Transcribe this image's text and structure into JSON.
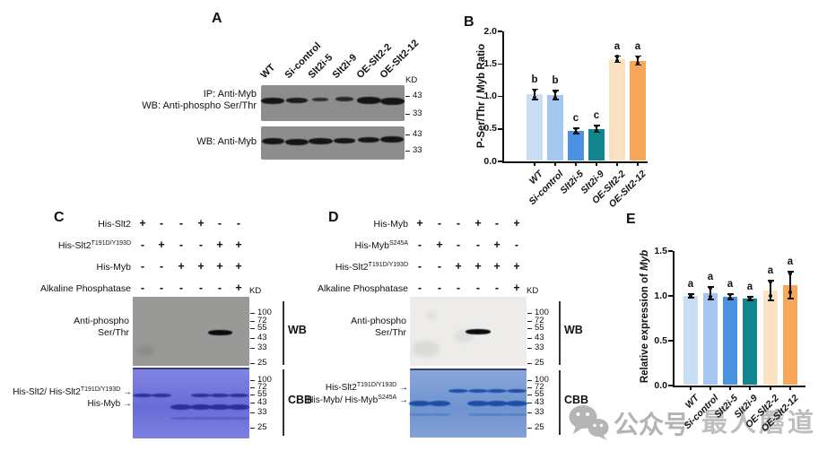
{
  "watermark": {
    "icon": "wechat-icon",
    "text_left": "公众号",
    "text_right": "最人蘑道"
  },
  "groups": [
    "WT",
    "Si-control",
    "Slt2i-5",
    "Slt2i-9",
    "OE-Slt2-2",
    "OE-Slt2-12"
  ],
  "bar_colors": [
    "#c9ddf3",
    "#a5c6ee",
    "#4b92e2",
    "#12858e",
    "#fbe2c2",
    "#f6a75a"
  ],
  "panels": {
    "a": {
      "letter": "A",
      "kd": "KD",
      "blot1_label_lines": [
        "IP: Anti-Myb",
        "WB: Anti-phospho Ser/Thr"
      ],
      "blot2_label_lines": [
        "WB: Anti-Myb"
      ],
      "markers": [
        "43",
        "33"
      ],
      "blot1_bands": [
        {
          "lane": 0,
          "w": 26,
          "h": 7,
          "dy": 0,
          "o": 1
        },
        {
          "lane": 1,
          "w": 24,
          "h": 6,
          "dy": 0,
          "o": 0.95
        },
        {
          "lane": 2,
          "w": 18,
          "h": 4,
          "dy": -1,
          "o": 0.8
        },
        {
          "lane": 3,
          "w": 20,
          "h": 5,
          "dy": -2,
          "o": 0.85
        },
        {
          "lane": 4,
          "w": 27,
          "h": 8,
          "dy": 0,
          "o": 1
        },
        {
          "lane": 5,
          "w": 27,
          "h": 8,
          "dy": 1,
          "o": 1
        }
      ],
      "blot2_bands": [
        {
          "lane": 0,
          "w": 25,
          "h": 7,
          "dy": 0,
          "o": 1
        },
        {
          "lane": 1,
          "w": 26,
          "h": 7,
          "dy": 1,
          "o": 1
        },
        {
          "lane": 2,
          "w": 27,
          "h": 7,
          "dy": 0,
          "o": 1
        },
        {
          "lane": 3,
          "w": 24,
          "h": 6,
          "dy": 0,
          "o": 1
        },
        {
          "lane": 4,
          "w": 24,
          "h": 6,
          "dy": -1,
          "o": 1
        },
        {
          "lane": 5,
          "w": 26,
          "h": 7,
          "dy": -2,
          "o": 1
        }
      ]
    },
    "c": {
      "letter": "C",
      "kd": "KD",
      "wb_tag": "WB",
      "cbb_tag": "CBB",
      "ladder": [
        "100",
        "72",
        "55",
        "43",
        "33",
        "25"
      ],
      "wb_label_lines": [
        "Anti-phospho",
        "Ser/Thr"
      ],
      "reagents": [
        {
          "label": "His-Slt2",
          "sup": "",
          "signs": [
            "+",
            "-",
            "-",
            "+",
            "-",
            "-"
          ]
        },
        {
          "label": "His-Slt2",
          "sup": "T191D/Y193D",
          "signs": [
            "-",
            "+",
            "-",
            "-",
            "+",
            "+"
          ]
        },
        {
          "label": "His-Myb",
          "sup": "",
          "signs": [
            "-",
            "-",
            "+",
            "+",
            "+",
            "+"
          ]
        },
        {
          "label": "Alkaline Phosphatase",
          "sup": "",
          "signs": [
            "-",
            "-",
            "-",
            "-",
            "-",
            "+"
          ]
        }
      ],
      "wb_bands": [
        {
          "lane": 4,
          "dy": 40,
          "w": 27,
          "h": 6,
          "o": 1
        }
      ],
      "cbb_upper_lanes": [
        0,
        1,
        3,
        4,
        5
      ],
      "cbb_lower_lanes": [
        2,
        3,
        4,
        5
      ],
      "cbb_labels": [
        {
          "text": "His-Slt2/ His-Slt2",
          "sup": "T191D/Y193D"
        },
        {
          "text": "His-Myb",
          "sup": ""
        }
      ]
    },
    "d": {
      "letter": "D",
      "kd": "KD",
      "wb_tag": "WB",
      "cbb_tag": "CBB",
      "ladder": [
        "100",
        "72",
        "55",
        "43",
        "33",
        "25"
      ],
      "wb_label_lines": [
        "Anti-phospho",
        "Ser/Thr"
      ],
      "reagents": [
        {
          "label": "His-Myb",
          "sup": "",
          "signs": [
            "+",
            "-",
            "-",
            "+",
            "-",
            "+"
          ]
        },
        {
          "label": "His-Myb",
          "sup": "S245A",
          "signs": [
            "-",
            "+",
            "-",
            "-",
            "+",
            "-"
          ]
        },
        {
          "label": "His-Slt2",
          "sup": "T191D/Y193D",
          "signs": [
            "-",
            "-",
            "+",
            "+",
            "+",
            "+"
          ]
        },
        {
          "label": "Alkaline Phosphatase",
          "sup": "",
          "signs": [
            "-",
            "-",
            "-",
            "-",
            "-",
            "+"
          ]
        }
      ],
      "wb_bands": [
        {
          "lane": 3,
          "dy": 39,
          "w": 28,
          "h": 6,
          "o": 1
        }
      ],
      "cbb_upper_lanes": [
        2,
        3,
        4,
        5
      ],
      "cbb_lower_lanes": [
        0,
        1,
        3,
        4,
        5
      ],
      "cbb_labels": [
        {
          "text": "His-Slt2",
          "sup": "T191D/Y193D"
        },
        {
          "text": "His-Myb/ His-Myb",
          "sup": "S245A"
        }
      ]
    }
  },
  "chart_data": [
    {
      "type": "bar",
      "panel": "B",
      "categories": [
        "WT",
        "Si-control",
        "Slt2i-5",
        "Slt2i-9",
        "OE-Slt2-2",
        "OE-Slt2-12"
      ],
      "values": [
        1.03,
        1.02,
        0.47,
        0.5,
        1.57,
        1.55
      ],
      "errors": [
        0.08,
        0.07,
        0.04,
        0.05,
        0.05,
        0.07
      ],
      "sig_letters": [
        "b",
        "b",
        "c",
        "c",
        "a",
        "a"
      ],
      "title": "",
      "xlabel": "",
      "ylabel": "P-Ser/Thr / Myb Ratio",
      "ylim": [
        0,
        2.0
      ],
      "yticks": [
        "0.0",
        "0.5",
        "1.0",
        "1.5",
        "2.0"
      ],
      "grid": false,
      "legend": "none",
      "bar_colors": [
        "#c9ddf3",
        "#a5c6ee",
        "#4b92e2",
        "#12858e",
        "#fbe2c2",
        "#f6a75a"
      ]
    },
    {
      "type": "bar",
      "panel": "E",
      "categories": [
        "WT",
        "Si-control",
        "Slt2i-5",
        "Slt2i-9",
        "OE-Slt2-2",
        "OE-Slt2-12"
      ],
      "values": [
        1.0,
        1.03,
        0.99,
        0.97,
        1.06,
        1.12
      ],
      "errors": [
        0.02,
        0.07,
        0.03,
        0.02,
        0.11,
        0.15
      ],
      "sig_letters": [
        "a",
        "a",
        "a",
        "a",
        "a",
        "a"
      ],
      "title": "",
      "xlabel": "",
      "ylabel_prefix": "Relative expression of ",
      "ylabel_italic": "Myb",
      "ylim": [
        0,
        1.5
      ],
      "yticks": [
        "0.0",
        "0.5",
        "1.0",
        "1.5"
      ],
      "grid": false,
      "legend": "none",
      "bar_colors": [
        "#c9ddf3",
        "#a5c6ee",
        "#4b92e2",
        "#12858e",
        "#fbe2c2",
        "#f6a75a"
      ]
    }
  ]
}
